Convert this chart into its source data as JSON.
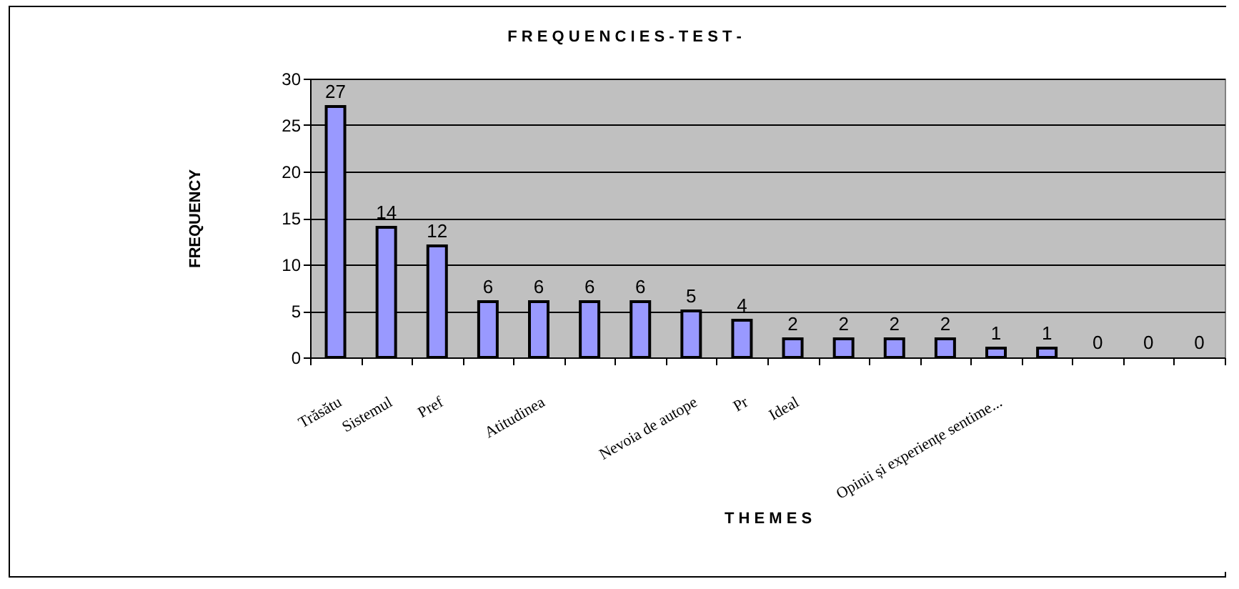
{
  "chart_data": {
    "type": "bar",
    "title": "F R E Q U E N C I E S  - T E S T -",
    "xlabel": "T H E M E S",
    "ylabel": "FREQUENCY",
    "categories": [
      "Trăsătu",
      "Sistemul",
      "Pref",
      null,
      "Atitudinea",
      null,
      null,
      "Nevoia de autope",
      "Pr",
      "Ideal",
      null,
      null,
      null,
      "Opinii și experiențe sentime...",
      null,
      null,
      null,
      null
    ],
    "values": [
      27,
      14,
      12,
      6,
      6,
      6,
      6,
      5,
      4,
      2,
      2,
      2,
      2,
      1,
      1,
      0,
      0,
      0
    ],
    "color": "#9999ff",
    "ylim": [
      0,
      30
    ],
    "yticks": [
      0,
      5,
      10,
      15,
      20,
      25,
      30
    ],
    "grid": "y",
    "data_labels": true
  }
}
